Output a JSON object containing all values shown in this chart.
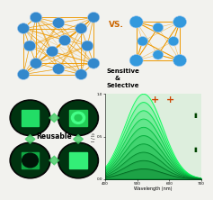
{
  "background_color": "#f2f2ee",
  "vs_text": "VS.",
  "vs_color": "#cc6600",
  "sensitive_text": "Sensitive\n    &\nSelective",
  "reusable_text": "Reusable",
  "wavelength_label": "Wavelength (nm)",
  "intensity_label": "I / I₀",
  "x_min": 400,
  "x_max": 700,
  "y_min": 0.0,
  "y_max": 1.0,
  "peak_wavelength": 520,
  "num_curves": 10,
  "node_color_3d": "#3388cc",
  "node_color_2d": "#3399dd",
  "linker_color": "#ee9900",
  "spec_bg": "#ddeedd"
}
